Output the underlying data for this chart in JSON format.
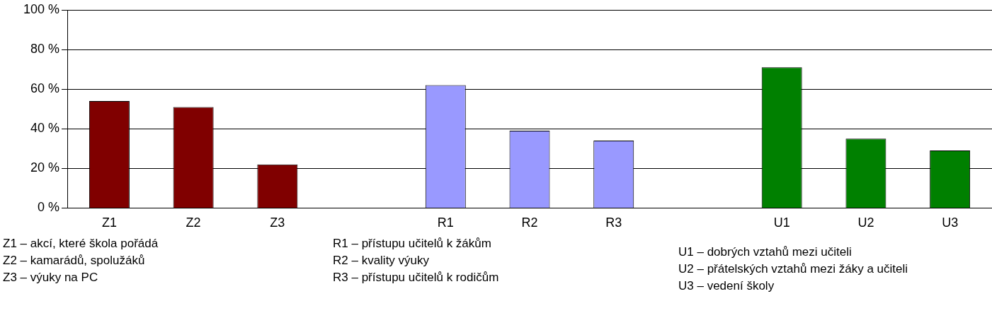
{
  "chart_data": {
    "type": "bar",
    "categories": [
      "Z1",
      "Z2",
      "Z3",
      null,
      "R1",
      "R2",
      "R3",
      null,
      "U1",
      "U2",
      "U3"
    ],
    "values": [
      54,
      51,
      22,
      null,
      62,
      39,
      34,
      null,
      71,
      35,
      29
    ],
    "colors": [
      "#800000",
      "#800000",
      "#800000",
      null,
      "#9999ff",
      "#9999ff",
      "#9999ff",
      null,
      "#008000",
      "#008000",
      "#008000"
    ],
    "ylim": [
      0,
      100
    ],
    "yticks": [
      {
        "value": 0,
        "label": "0 %"
      },
      {
        "value": 20,
        "label": "20 %"
      },
      {
        "value": 40,
        "label": "40 %"
      },
      {
        "value": 60,
        "label": "60 %"
      },
      {
        "value": 80,
        "label": "80 %"
      },
      {
        "value": 100,
        "label": "100 %"
      }
    ],
    "grid": "y",
    "legend": false,
    "annotations": [
      "Z1 – akcí, které škola pořádá",
      "Z2 – kamarádů, spolužáků",
      "Z3 – výuky na PC",
      "R1 – přístupu učitelů k žákům",
      "R2 – kvality výuky",
      "R3 – přístupu učitelů k rodičům",
      "U1 – dobrých vztahů mezi učiteli",
      "U2 – přátelských vztahů mezi žáky a učiteli",
      "U3 – vedení školy"
    ]
  }
}
